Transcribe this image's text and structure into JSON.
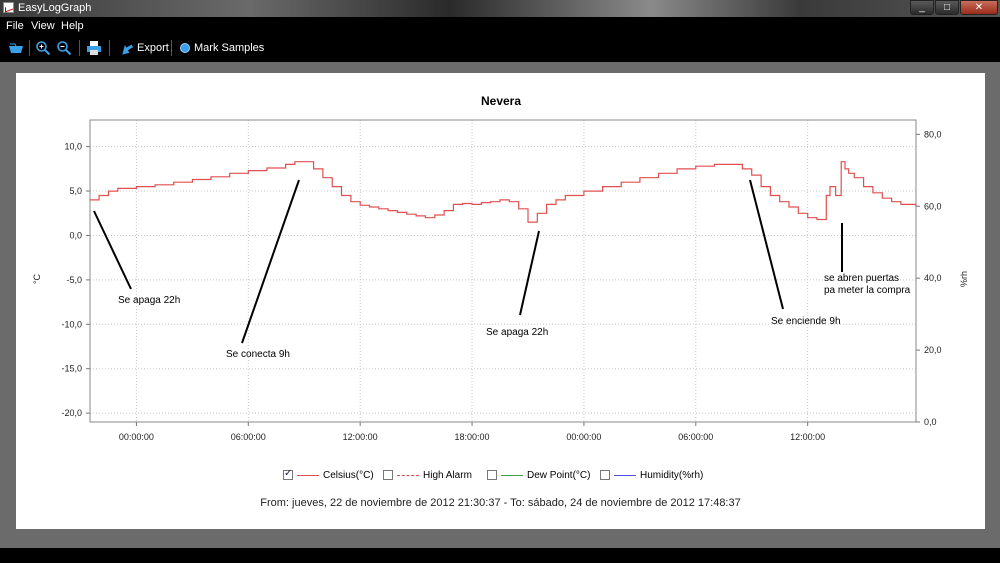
{
  "window": {
    "title": "EasyLogGraph"
  },
  "menu": {
    "file": "File",
    "view": "View",
    "help": "Help"
  },
  "toolbar": {
    "export_label": "Export",
    "mark_samples_label": "Mark Samples",
    "icons": [
      "open-icon",
      "zoom-in-icon",
      "zoom-out-icon",
      "print-icon",
      "export-icon",
      "mark-samples-icon"
    ]
  },
  "colors": {
    "celsius": "#e05050",
    "high_alarm": "#e05050",
    "dew_point": "#40a040",
    "humidity": "#5050e0"
  },
  "chart": {
    "title": "Nevera",
    "y_left_label": "°C",
    "y_right_label": "%rh",
    "left_ticks": [
      "10,0",
      "5,0",
      "0,0",
      "-5,0",
      "-10,0",
      "-15,0",
      "-20,0"
    ],
    "right_ticks": [
      "80,0",
      "60,0",
      "40,0",
      "20,0",
      "0,0"
    ],
    "x_ticks": [
      "00:00:00",
      "06:00:00",
      "12:00:00",
      "18:00:00",
      "00:00:00",
      "06:00:00",
      "12:00:00"
    ]
  },
  "annotations": [
    {
      "text": "Se apaga 22h"
    },
    {
      "text": "Se conecta 9h"
    },
    {
      "text": "Se apaga 22h"
    },
    {
      "text": "Se enciende 9h"
    },
    {
      "text": "se abren puertas\n pa meter la compra"
    }
  ],
  "legend": [
    {
      "label": "Celsius(°C)",
      "checked": true
    },
    {
      "label": "High Alarm",
      "checked": false
    },
    {
      "label": "Dew Point(°C)",
      "checked": false
    },
    {
      "label": "Humidity(%rh)",
      "checked": false
    }
  ],
  "range_text": "From: jueves, 22 de noviembre de 2012 21:30:37  -  To: sábado, 24 de noviembre de 2012 17:48:37",
  "chart_data": {
    "type": "line",
    "title": "Nevera",
    "xlabel": "",
    "ylabel": "°C",
    "y2label": "%rh",
    "ylim": [
      -21,
      13
    ],
    "y2lim": [
      0,
      84
    ],
    "x_unit": "hours since 2012-11-23 00:00:00",
    "xlim": [
      -2.49,
      41.81
    ],
    "grid": true,
    "legend_position": "bottom",
    "series": [
      {
        "name": "Celsius(°C)",
        "color": "#e05050",
        "x": [
          -2.5,
          -2.0,
          -1.5,
          -1.0,
          0.0,
          1.0,
          2.0,
          3.0,
          4.0,
          5.0,
          6.0,
          7.0,
          8.0,
          8.5,
          9.0,
          9.5,
          10.0,
          10.5,
          11.0,
          11.5,
          12.0,
          12.5,
          13.0,
          13.5,
          14.0,
          14.5,
          15.0,
          15.5,
          16.0,
          16.5,
          17.0,
          17.5,
          18.0,
          18.5,
          19.0,
          19.5,
          20.0,
          20.5,
          21.0,
          21.5,
          22.0,
          22.5,
          23.0,
          24.0,
          25.0,
          26.0,
          27.0,
          28.0,
          29.0,
          30.0,
          31.0,
          32.0,
          32.5,
          33.0,
          33.5,
          34.0,
          34.5,
          35.0,
          35.5,
          36.0,
          36.5,
          37.0,
          37.2,
          37.5,
          37.8,
          38.0,
          38.2,
          38.5,
          39.0,
          39.5,
          40.0,
          40.5,
          41.0,
          41.8
        ],
        "y": [
          4.0,
          4.5,
          5.0,
          5.3,
          5.5,
          5.7,
          6.0,
          6.3,
          6.6,
          7.0,
          7.3,
          7.6,
          8.0,
          8.3,
          8.3,
          7.5,
          6.5,
          5.5,
          4.5,
          3.8,
          3.4,
          3.2,
          3.0,
          2.8,
          2.6,
          2.4,
          2.2,
          2.0,
          2.3,
          2.8,
          3.5,
          3.6,
          3.5,
          3.7,
          3.8,
          4.0,
          3.8,
          3.0,
          1.5,
          2.5,
          3.5,
          4.0,
          4.5,
          5.0,
          5.5,
          6.0,
          6.5,
          7.0,
          7.5,
          7.8,
          8.0,
          8.0,
          7.5,
          6.8,
          5.5,
          4.5,
          3.8,
          3.2,
          2.5,
          2.0,
          1.8,
          4.5,
          5.5,
          4.5,
          8.3,
          7.5,
          7.0,
          6.5,
          5.5,
          4.8,
          4.2,
          3.8,
          3.5,
          3.3
        ]
      }
    ]
  }
}
